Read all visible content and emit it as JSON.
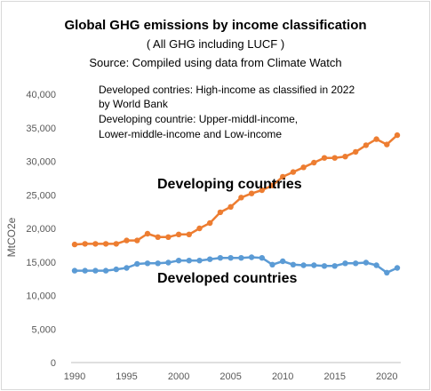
{
  "chart_data": {
    "type": "line",
    "title": "Global GHG emissions by income classification",
    "subtitle": "( All GHG including LUCF )",
    "source": "Source: Compiled using data from Climate Watch",
    "notes": [
      "Developed contries: High-income as classified in 2022",
      "by World Bank",
      "Developing countrie: Upper-middl-income,",
      "Lower-middle-income and Low-income"
    ],
    "ylabel": "MtCO2e",
    "xlabel": "",
    "xlim": [
      1990,
      2021
    ],
    "ylim": [
      0,
      40000
    ],
    "x_ticks": [
      1990,
      1995,
      2000,
      2005,
      2010,
      2015,
      2020
    ],
    "y_tick_labels": [
      "0",
      "5,000",
      "10,000",
      "15,000",
      "20,000",
      "25,000",
      "30,000",
      "35,000",
      "40,000"
    ],
    "y_ticks": [
      0,
      5000,
      10000,
      15000,
      20000,
      25000,
      30000,
      35000,
      40000
    ],
    "grid": false,
    "x": [
      1990,
      1991,
      1992,
      1993,
      1994,
      1995,
      1996,
      1997,
      1998,
      1999,
      2000,
      2001,
      2002,
      2003,
      2004,
      2005,
      2006,
      2007,
      2008,
      2009,
      2010,
      2011,
      2012,
      2013,
      2014,
      2015,
      2016,
      2017,
      2018,
      2019,
      2020,
      2021
    ],
    "series": [
      {
        "name": "Developing countries",
        "color": "#ed7d31",
        "values": [
          17600,
          17700,
          17700,
          17700,
          17700,
          18200,
          18200,
          19200,
          18700,
          18700,
          19100,
          19100,
          20000,
          20800,
          22400,
          23200,
          24600,
          25200,
          25700,
          26400,
          27700,
          28400,
          29100,
          29800,
          30500,
          30500,
          30700,
          31400,
          32400,
          33300,
          32500,
          33900
        ]
      },
      {
        "name": "Developed countries",
        "color": "#5b9bd5",
        "values": [
          13700,
          13700,
          13700,
          13700,
          13900,
          14100,
          14700,
          14800,
          14800,
          14900,
          15200,
          15200,
          15200,
          15400,
          15600,
          15600,
          15600,
          15700,
          15600,
          14600,
          15100,
          14600,
          14500,
          14500,
          14400,
          14400,
          14800,
          14800,
          14900,
          14500,
          13400,
          14100
        ]
      }
    ]
  }
}
